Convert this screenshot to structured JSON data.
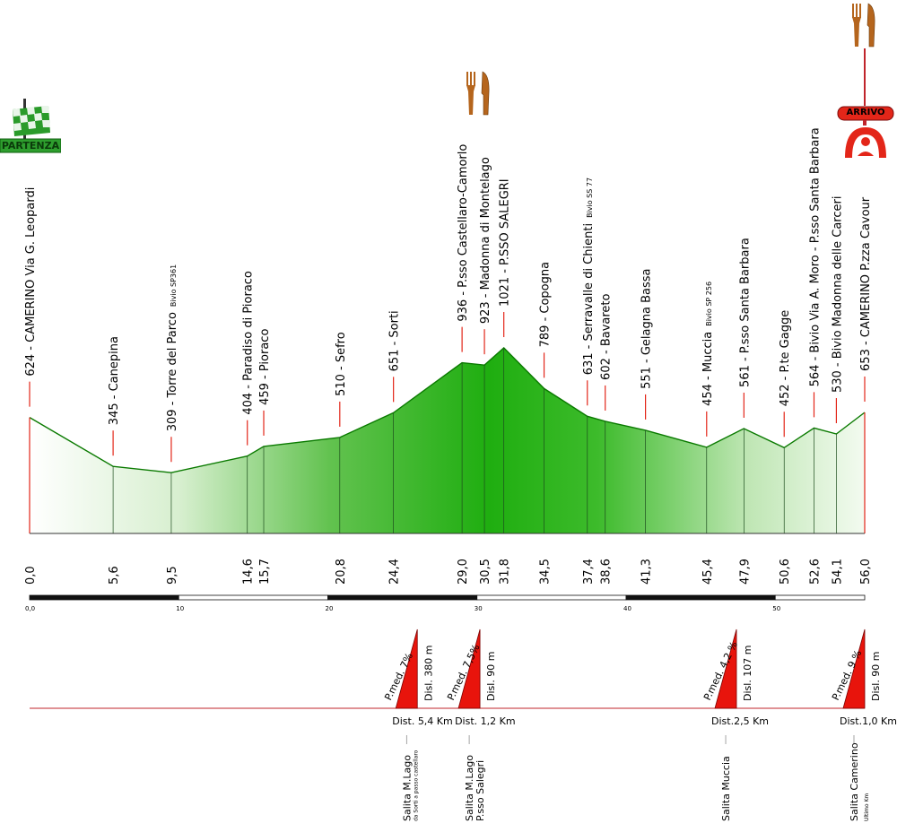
{
  "chart_data": {
    "type": "area",
    "title": "",
    "xlabel": "",
    "ylabel": "",
    "x_unit": "km",
    "y_unit": "m",
    "points": [
      {
        "km": 0.0,
        "alt": 624,
        "name": "CAMERINO Via G. Leopardi",
        "note": ""
      },
      {
        "km": 5.6,
        "alt": 345,
        "name": "Canepina",
        "note": ""
      },
      {
        "km": 9.5,
        "alt": 309,
        "name": "Torre del Parco",
        "note": "Bivio SP361"
      },
      {
        "km": 14.6,
        "alt": 404,
        "name": "Paradiso di Pioraco",
        "note": ""
      },
      {
        "km": 15.7,
        "alt": 459,
        "name": "Pioraco",
        "note": ""
      },
      {
        "km": 20.8,
        "alt": 510,
        "name": "Sefro",
        "note": ""
      },
      {
        "km": 24.4,
        "alt": 651,
        "name": "Sorti",
        "note": ""
      },
      {
        "km": 29.0,
        "alt": 936,
        "name": "P.sso Castellaro-Camorlo",
        "note": ""
      },
      {
        "km": 30.5,
        "alt": 923,
        "name": "Madonna di Montelago",
        "note": ""
      },
      {
        "km": 31.8,
        "alt": 1021,
        "name": "P.SSO SALEGRI",
        "note": ""
      },
      {
        "km": 34.5,
        "alt": 789,
        "name": "Copogna",
        "note": ""
      },
      {
        "km": 37.4,
        "alt": 631,
        "name": "Serravalle di Chienti",
        "note": "Bivio SS 77"
      },
      {
        "km": 38.6,
        "alt": 602,
        "name": "Bavareto",
        "note": ""
      },
      {
        "km": 41.3,
        "alt": 551,
        "name": "Gelagna Bassa",
        "note": ""
      },
      {
        "km": 45.4,
        "alt": 454,
        "name": "Muccia",
        "note": "Bivio SP 256"
      },
      {
        "km": 47.9,
        "alt": 561,
        "name": "P.sso Santa Barbara",
        "note": ""
      },
      {
        "km": 50.6,
        "alt": 452,
        "name": "P.te Gagge",
        "note": ""
      },
      {
        "km": 52.6,
        "alt": 564,
        "name": "Bivio Via A. Moro - P.sso Santa Barbara",
        "note": ""
      },
      {
        "km": 54.1,
        "alt": 530,
        "name": "Bivio Madonna delle Carceri",
        "note": ""
      },
      {
        "km": 56.0,
        "alt": 653,
        "name": "CAMERINO P.zza Cavour",
        "note": ""
      }
    ],
    "km_labels": [
      "0,0",
      "5,6",
      "9,5",
      "14,6",
      "15,7",
      "20,8",
      "24,4",
      "29,0",
      "30,5",
      "31,8",
      "34,5",
      "37,4",
      "38,6",
      "41,3",
      "45,4",
      "47,9",
      "50,6",
      "52,6",
      "54,1",
      "56,0"
    ],
    "scale_ticks": [
      {
        "km": 0,
        "label": "0,0"
      },
      {
        "km": 10,
        "label": "10"
      },
      {
        "km": 20,
        "label": "20"
      },
      {
        "km": 30,
        "label": "30"
      },
      {
        "km": 40,
        "label": "40"
      },
      {
        "km": 50,
        "label": "50"
      }
    ],
    "xlim": [
      0,
      56
    ],
    "ylim": [
      300,
      1021
    ],
    "colors": {
      "fill_dark": "#1fae10",
      "fill_light": "#ffffff",
      "outline": "#0a7a00",
      "marker": "#e32619",
      "baseline": "#c0252b"
    },
    "climbs": [
      {
        "km_end": 26.0,
        "dist": "Dist. 5,4 Km",
        "grade": "P.med. 7%",
        "disl": "Disl. 380 m",
        "name": "Salita M.Lago",
        "sub": "da Sorti a passo castellaro"
      },
      {
        "km_end": 30.2,
        "dist": "Dist. 1,2 Km",
        "grade": "P.med. 7,5%",
        "disl": "Disl. 90 m",
        "name": "Salita M.Lago",
        "sub": "P.sso Salegri"
      },
      {
        "km_end": 47.4,
        "dist": "Dist.2,5 Km",
        "grade": "P.med. 4,2 %",
        "disl": "Disl. 107 m",
        "name": "Salita Muccia",
        "sub": ""
      },
      {
        "km_end": 56.0,
        "dist": "Dist.1,0 Km",
        "grade": "P.med. 9 %",
        "disl": "Disl. 90 m",
        "name": "Salita Camerino",
        "sub": "Ultimo Km"
      }
    ]
  },
  "badges": {
    "start": "PARTENZA",
    "finish": "ARRIVO",
    "start_icon": "checkered-flag-icon",
    "finish_icon": "finish-arch-icon",
    "food_icon": "fork-knife-icon"
  }
}
